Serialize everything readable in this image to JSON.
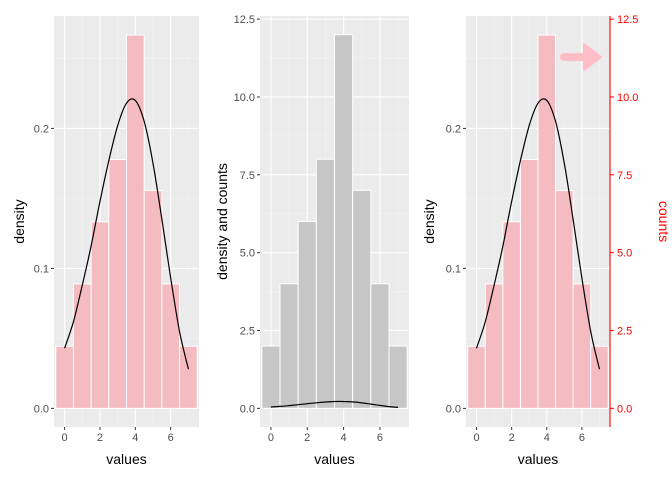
{
  "chart_data": [
    {
      "type": "bar",
      "xlabel": "values",
      "ylabel": "density",
      "x_ticks": [
        0,
        2,
        4,
        6
      ],
      "y_ticks": [
        0.0,
        0.1,
        0.2
      ],
      "y_tick_labels": [
        "0.0",
        "0.1",
        "0.2"
      ],
      "xlim": [
        -0.6,
        7.6
      ],
      "ylim": [
        -0.0133,
        0.2803
      ],
      "bar_x": [
        0,
        1,
        2,
        3,
        4,
        5,
        6,
        7
      ],
      "values": [
        0.0444,
        0.0889,
        0.1333,
        0.1778,
        0.2667,
        0.1556,
        0.0889,
        0.0444
      ],
      "bar_fill": "#f4bcc0",
      "bar_outline": "#ffffff",
      "density_curve": {
        "x": [
          0,
          0.5,
          1,
          1.5,
          2,
          2.5,
          3,
          3.5,
          4,
          4.5,
          5,
          5.5,
          6,
          6.5,
          7
        ],
        "y": [
          0.043,
          0.062,
          0.088,
          0.116,
          0.148,
          0.177,
          0.202,
          0.218,
          0.22,
          0.205,
          0.175,
          0.135,
          0.093,
          0.055,
          0.028
        ],
        "color": "#000000"
      },
      "grid": true
    },
    {
      "type": "bar",
      "xlabel": "values",
      "ylabel": "density and counts",
      "x_ticks": [
        0,
        2,
        4,
        6
      ],
      "y_ticks": [
        0,
        2.5,
        5,
        7.5,
        10,
        12.5
      ],
      "y_tick_labels": [
        "0.0",
        "2.5",
        "5.0",
        "7.5",
        "10.0",
        "12.5"
      ],
      "xlim": [
        -0.6,
        7.6
      ],
      "ylim": [
        -0.6,
        12.6
      ],
      "bar_x": [
        0,
        1,
        2,
        3,
        4,
        5,
        6,
        7
      ],
      "values": [
        2,
        4,
        6,
        8,
        12,
        7,
        4,
        2
      ],
      "bar_fill": "#c6c6c6",
      "bar_outline": "#ffffff",
      "density_curve": {
        "x": [
          0,
          0.5,
          1,
          1.5,
          2,
          2.5,
          3,
          3.5,
          4,
          4.5,
          5,
          5.5,
          6,
          6.5,
          7
        ],
        "y": [
          0.043,
          0.062,
          0.088,
          0.116,
          0.148,
          0.177,
          0.202,
          0.218,
          0.22,
          0.205,
          0.175,
          0.135,
          0.093,
          0.055,
          0.028
        ],
        "color": "#000000"
      },
      "grid": true
    },
    {
      "type": "bar",
      "xlabel": "values",
      "ylabel": "density",
      "secondary_ylabel": "counts",
      "secondary_axis_color": "#ff0000",
      "x_ticks": [
        0,
        2,
        4,
        6
      ],
      "y_ticks": [
        0.0,
        0.1,
        0.2
      ],
      "y_tick_labels": [
        "0.0",
        "0.1",
        "0.2"
      ],
      "secondary_y_ticks": [
        0,
        2.5,
        5,
        7.5,
        10,
        12.5
      ],
      "secondary_y_tick_labels": [
        "0.0",
        "2.5",
        "5.0",
        "7.5",
        "10.0",
        "12.5"
      ],
      "xlim": [
        -0.6,
        7.6
      ],
      "ylim": [
        -0.0133,
        0.2803
      ],
      "bar_x": [
        0,
        1,
        2,
        3,
        4,
        5,
        6,
        7
      ],
      "values": [
        0.0444,
        0.0889,
        0.1333,
        0.1778,
        0.2667,
        0.1556,
        0.0889,
        0.0444
      ],
      "bar_fill": "#f4bcc0",
      "bar_outline": "#ffffff",
      "density_curve": {
        "x": [
          0,
          0.5,
          1,
          1.5,
          2,
          2.5,
          3,
          3.5,
          4,
          4.5,
          5,
          5.5,
          6,
          6.5,
          7
        ],
        "y": [
          0.043,
          0.062,
          0.088,
          0.116,
          0.148,
          0.177,
          0.202,
          0.218,
          0.22,
          0.205,
          0.175,
          0.135,
          0.093,
          0.055,
          0.028
        ],
        "color": "#000000"
      },
      "arrow_icon": "right-arrow-icon",
      "arrow_color": "#ffbdc8",
      "grid": true
    }
  ]
}
